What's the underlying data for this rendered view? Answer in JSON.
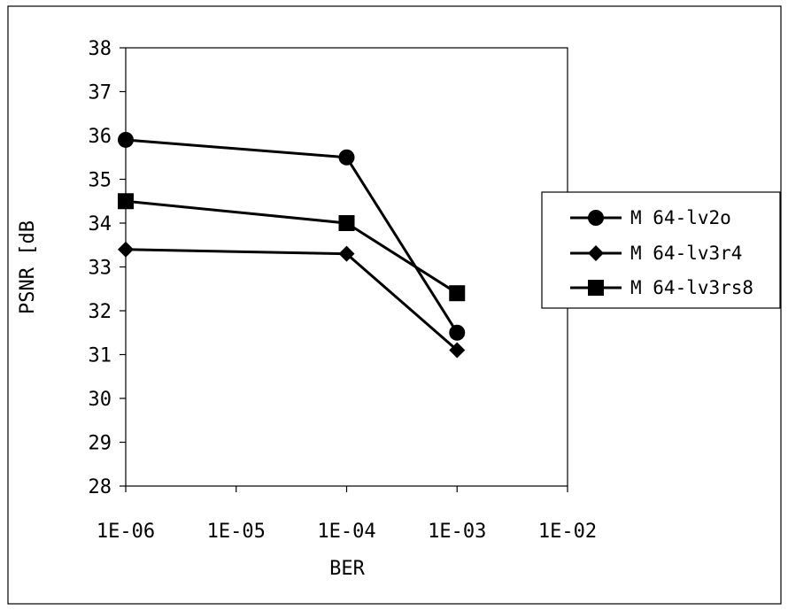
{
  "chart_data": {
    "type": "line",
    "title": "",
    "xlabel": "BER",
    "ylabel": "PSNR [dB",
    "x_scale": "log",
    "x_ticks": [
      "1E-06",
      "1E-05",
      "1E-04",
      "1E-03",
      "1E-02"
    ],
    "x_tick_values": [
      1e-06,
      1e-05,
      0.0001,
      0.001,
      0.01
    ],
    "ylim": [
      28,
      38
    ],
    "y_ticks": [
      "28",
      "29",
      "30",
      "31",
      "32",
      "33",
      "34",
      "35",
      "36",
      "37",
      "38"
    ],
    "y_tick_values": [
      28,
      29,
      30,
      31,
      32,
      33,
      34,
      35,
      36,
      37,
      38
    ],
    "grid": false,
    "legend_position": "right",
    "series": [
      {
        "name": "M 64-lv2o",
        "marker": "circle",
        "color": "#000000",
        "points": [
          {
            "x": 1e-06,
            "y": 35.9
          },
          {
            "x": 0.0001,
            "y": 35.5
          },
          {
            "x": 0.001,
            "y": 31.5
          }
        ]
      },
      {
        "name": "M 64-lv3r4",
        "marker": "diamond",
        "color": "#000000",
        "points": [
          {
            "x": 1e-06,
            "y": 33.4
          },
          {
            "x": 0.0001,
            "y": 33.3
          },
          {
            "x": 0.001,
            "y": 31.1
          }
        ]
      },
      {
        "name": "M 64-lv3rs8",
        "marker": "square",
        "color": "#000000",
        "points": [
          {
            "x": 1e-06,
            "y": 34.5
          },
          {
            "x": 0.0001,
            "y": 34.0
          },
          {
            "x": 0.001,
            "y": 32.4
          }
        ]
      }
    ]
  }
}
